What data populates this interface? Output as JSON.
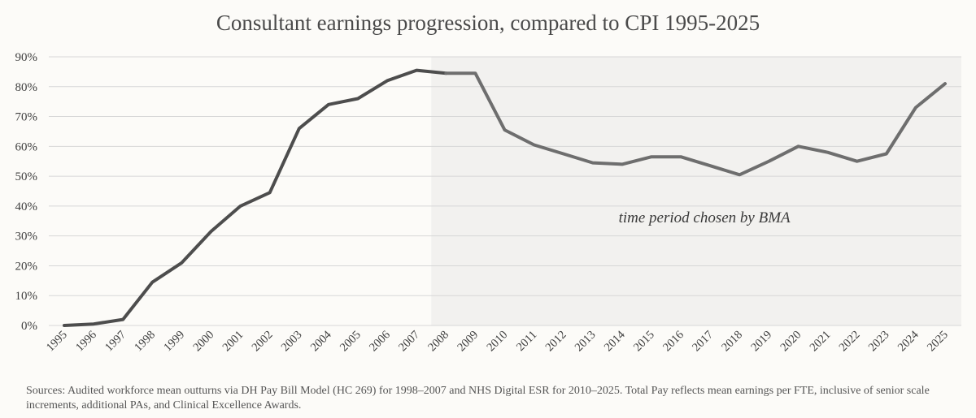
{
  "chart_data": {
    "type": "line",
    "title": "Consultant earnings progression, compared to CPI 1995-2025",
    "xlabel": "",
    "ylabel": "",
    "categories": [
      "1995",
      "1996",
      "1997",
      "1998",
      "1999",
      "2000",
      "2001",
      "2002",
      "2003",
      "2004",
      "2005",
      "2006",
      "2007",
      "2008",
      "2009",
      "2010",
      "2011",
      "2012",
      "2013",
      "2014",
      "2015",
      "2016",
      "2017",
      "2018",
      "2019",
      "2020",
      "2021",
      "2022",
      "2023",
      "2024",
      "2025"
    ],
    "series": [
      {
        "values": [
          0,
          0.5,
          2,
          14.5,
          21,
          31.5,
          40,
          44.5,
          66,
          74,
          76,
          82,
          85.5,
          84.5,
          84.5,
          65.5,
          60.5,
          57.5,
          54.5,
          54,
          56.5,
          56.5,
          53.5,
          50.5,
          55,
          60,
          58,
          55,
          57.5,
          73,
          81
        ]
      }
    ],
    "ylim": [
      0,
      90
    ],
    "yticks": [
      0,
      10,
      20,
      30,
      40,
      50,
      60,
      70,
      80,
      90
    ],
    "ytick_labels": [
      "0%",
      "10%",
      "20%",
      "30%",
      "40%",
      "50%",
      "60%",
      "70%",
      "80%",
      "90%"
    ],
    "grid": true,
    "highlight_region": {
      "from": "2008",
      "to": "2025",
      "label": "time period chosen by BMA"
    },
    "colors": {
      "line_before": "#4d4d4d",
      "line_after": "#6e6e6e",
      "highlight_fill": "#f2f1ef",
      "grid": "#d7d7d7"
    }
  },
  "sources": "Sources:  Audited workforce mean outturns via DH Pay Bill Model (HC 269) for 1998–2007 and NHS Digital ESR for 2010–2025. Total Pay reflects mean earnings per FTE, inclusive of senior scale increments, additional PAs, and Clinical Excellence Awards."
}
